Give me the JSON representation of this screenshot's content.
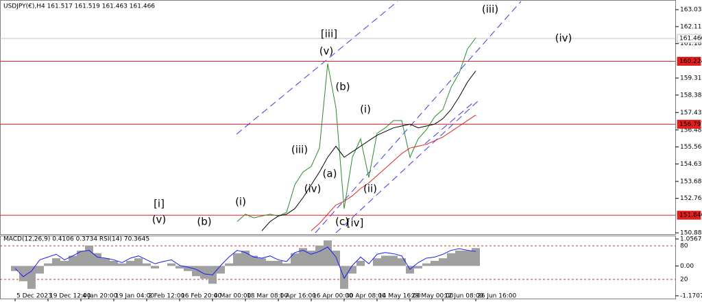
{
  "chart_data": [
    {
      "type": "line",
      "title": "USDJPY(€),H4  161.517 161.519 161.463 161.466",
      "categories": [
        "5 Dec 2023",
        null,
        null,
        null,
        "19 Dec 12:00",
        null,
        null,
        null,
        "4 Jan 20:00",
        null,
        null,
        null,
        "19 Jan 04:00",
        null,
        null,
        null,
        "2 Feb 12:00",
        null,
        null,
        null,
        "16 Feb 20:00",
        null,
        null,
        null,
        "4 Mar 00:00",
        null,
        null,
        null,
        "18 Mar 08:00",
        null,
        null,
        null,
        "1 Apr 16:00",
        null,
        null,
        null,
        "16 Apr 00:00",
        null,
        null,
        null,
        "30 Apr 08:00",
        null,
        null,
        null,
        "14 May 16:00",
        null,
        null,
        null,
        "29 May 00:00",
        null,
        null,
        null,
        "12 Jun 08:00",
        null,
        null,
        null,
        "26 Jun 16:00"
      ],
      "series": [
        {
          "color": "#2a8a2a",
          "values": [
            null,
            null,
            null,
            null,
            null,
            null,
            null,
            null,
            null,
            null,
            null,
            null,
            null,
            null,
            null,
            null,
            null,
            null,
            null,
            null,
            null,
            null,
            null,
            null,
            null,
            null,
            null,
            151.5,
            151.9,
            151.7,
            151.8,
            151.9,
            151.8,
            152.0,
            153.5,
            154.2,
            154.5,
            155.5,
            160.1,
            157.7,
            152.2,
            155.0,
            156.0,
            153.9,
            156.3,
            156.6,
            157.0,
            157.0,
            155.0,
            156.0,
            156.5,
            157.2,
            157.6,
            158.8,
            159.6,
            160.9,
            161.5
          ]
        },
        {
          "color": "#000000",
          "values": [
            null,
            null,
            null,
            null,
            null,
            null,
            null,
            null,
            null,
            null,
            null,
            null,
            null,
            null,
            null,
            null,
            null,
            null,
            null,
            null,
            null,
            null,
            null,
            null,
            null,
            null,
            null,
            null,
            null,
            null,
            151.0,
            151.5,
            151.8,
            151.9,
            152.2,
            152.8,
            153.5,
            154.2,
            155.0,
            155.6,
            155.0,
            155.3,
            155.6,
            155.9,
            156.2,
            156.4,
            156.6,
            156.7,
            156.8,
            156.6,
            156.7,
            156.8,
            157.1,
            157.6,
            158.3,
            159.1,
            159.7
          ]
        },
        {
          "color": "#e02020",
          "values": [
            null,
            null,
            null,
            null,
            null,
            null,
            null,
            null,
            null,
            null,
            null,
            null,
            null,
            null,
            null,
            null,
            null,
            null,
            null,
            null,
            null,
            null,
            null,
            null,
            null,
            null,
            null,
            null,
            null,
            null,
            null,
            null,
            null,
            null,
            null,
            null,
            151.0,
            151.4,
            151.9,
            152.4,
            152.6,
            152.9,
            153.3,
            153.6,
            154.0,
            154.4,
            154.8,
            155.2,
            155.5,
            155.6,
            155.7,
            155.9,
            156.1,
            156.4,
            156.7,
            157.0,
            157.3
          ]
        }
      ],
      "ylim": [
        150.81,
        163.56
      ],
      "yticks": [
        163.035,
        162.11,
        161.185,
        159.31,
        158.385,
        157.435,
        156.485,
        155.56,
        154.635,
        153.685,
        152.76,
        150.885
      ],
      "levels": [
        {
          "value": 160.224,
          "color": "#e02020"
        },
        {
          "value": 156.797,
          "color": "#e02020"
        },
        {
          "value": 151.846,
          "color": "#e02020"
        },
        {
          "value": 161.466,
          "color": "#c0c0c0"
        }
      ],
      "annotations": [
        {
          "text": "[iii]",
          "color": "#2a8a2a"
        },
        {
          "text": "(v)",
          "color": "#2020d0"
        },
        {
          "text": "(b)",
          "color": "#2020d0"
        },
        {
          "text": "(a)",
          "color": "#2020d0"
        },
        {
          "text": "(iii)",
          "color": "#2020d0"
        },
        {
          "text": "(iv)",
          "color": "#2020d0"
        },
        {
          "text": "(c)",
          "color": "#2020d0"
        },
        {
          "text": "[iv]",
          "color": "#2a8a2a"
        },
        {
          "text": "(i)",
          "color": "#2020d0"
        },
        {
          "text": "(ii)",
          "color": "#2020d0"
        },
        {
          "text": "(iii)",
          "color": "#2020d0"
        },
        {
          "text": "(iv)",
          "color": "#2020d0"
        },
        {
          "text": "[i]",
          "color": "#2a8a2a"
        },
        {
          "text": "(v)",
          "color": "#2020d0"
        },
        {
          "text": "(b)",
          "color": "#2020d0"
        },
        {
          "text": "(i)",
          "color": "#2020d0"
        }
      ]
    },
    {
      "type": "line",
      "title": "MACD(12,26,9) 0.4106 0.3734 RSI(14) 70.3645",
      "series": [
        {
          "color": "#a0a0a0",
          "values": [
            -0.2,
            -0.6,
            -0.9,
            -0.3,
            0.1,
            0.3,
            0.2,
            0.4,
            0.6,
            0.8,
            0.5,
            0.3,
            0.2,
            0.1,
            0.2,
            0.3,
            0.1,
            -0.1,
            0.0,
            0.1,
            -0.1,
            -0.2,
            -0.4,
            -0.5,
            -0.7,
            -0.3,
            0.1,
            0.5,
            0.6,
            0.4,
            0.3,
            0.2,
            0.2,
            0.1,
            0.5,
            0.7,
            0.6,
            0.8,
            1.0,
            0.6,
            -0.9,
            -0.3,
            0.2,
            0.0,
            0.3,
            0.4,
            0.4,
            0.3,
            -0.3,
            -0.1,
            0.1,
            0.2,
            0.3,
            0.5,
            0.6,
            0.6,
            0.7
          ]
        },
        {
          "color": "#1a1aff",
          "axis": "y2",
          "values": [
            40,
            25,
            35,
            55,
            60,
            65,
            55,
            62,
            70,
            72,
            60,
            58,
            55,
            50,
            58,
            62,
            55,
            48,
            52,
            55,
            45,
            42,
            38,
            30,
            28,
            45,
            60,
            72,
            68,
            60,
            58,
            62,
            55,
            52,
            68,
            72,
            65,
            70,
            78,
            60,
            22,
            45,
            60,
            48,
            65,
            68,
            66,
            62,
            38,
            50,
            58,
            60,
            65,
            72,
            75,
            72,
            70
          ]
        }
      ],
      "ylim": [
        -1.28,
        1.19
      ],
      "yticks": [
        1.0567,
        {
          "value": 0,
          "label": "0.00"
        },
        -1.1707
      ],
      "y2lim": [
        -14.3,
        98.4
      ],
      "y2ticks": [
        80,
        20
      ]
    }
  ]
}
